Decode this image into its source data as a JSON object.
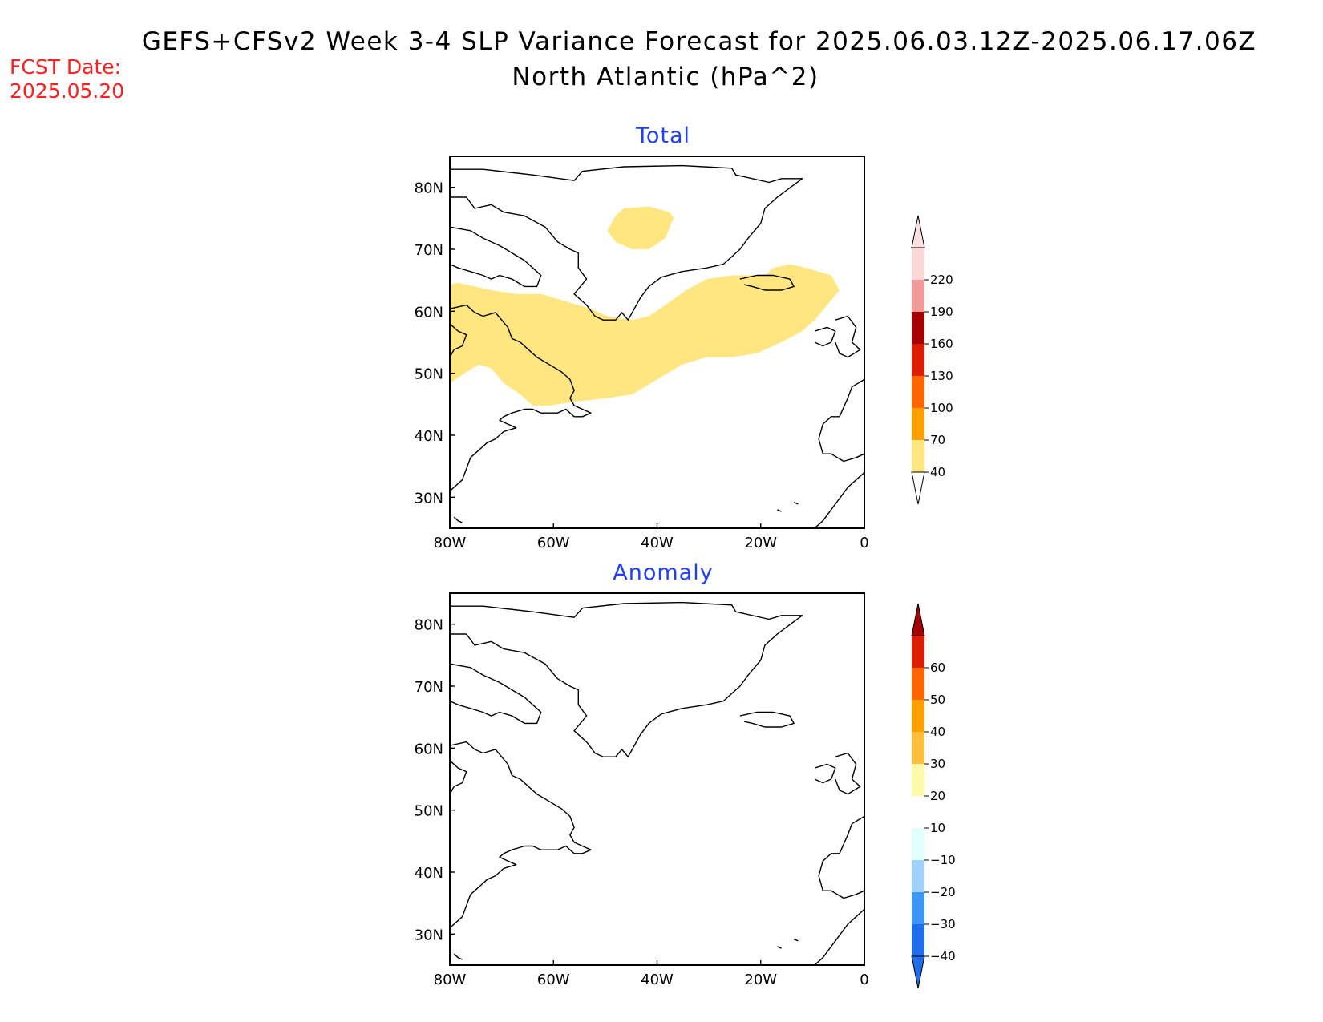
{
  "header": {
    "title_line1": "GEFS+CFSv2 Week 3-4 SLP Variance Forecast for 2025.06.03.12Z-2025.06.17.06Z",
    "title_line2": "North Atlantic (hPa^2)",
    "fcst_label": "FCST Date:",
    "fcst_date": "2025.05.20",
    "title_color": "#000000",
    "fcst_color": "#ff2020"
  },
  "panels": [
    {
      "title": "Total",
      "title_color": "#2040ff",
      "lat_labels": [
        "80N",
        "70N",
        "60N",
        "50N",
        "40N",
        "30N"
      ],
      "lon_labels": [
        "80W",
        "60W",
        "40W",
        "20W",
        "0"
      ],
      "lat_range": [
        25,
        85
      ],
      "lon_range": [
        -80,
        0
      ],
      "shaded_regions": [
        {
          "name": "central-greenland",
          "level": "40-70",
          "color": "#ffe680"
        },
        {
          "name": "north-atlantic-band",
          "level": "40-70",
          "color": "#ffe680"
        }
      ],
      "colorbar": {
        "labels": [
          "220",
          "190",
          "160",
          "130",
          "100",
          "70",
          "40"
        ],
        "colors": [
          "#fbd8d8",
          "#f09a9a",
          "#a50000",
          "#dc1e00",
          "#ff6600",
          "#ff9f00",
          "#ffe680"
        ],
        "extend": "both",
        "low_extension_color": "#ffffff",
        "high_extension_color": "#fde0e0"
      }
    },
    {
      "title": "Anomaly",
      "title_color": "#2040ff",
      "lat_labels": [
        "80N",
        "70N",
        "60N",
        "50N",
        "40N",
        "30N"
      ],
      "lon_labels": [
        "80W",
        "60W",
        "40W",
        "20W",
        "0"
      ],
      "lat_range": [
        25,
        85
      ],
      "lon_range": [
        -80,
        0
      ],
      "shaded_regions": [],
      "colorbar": {
        "labels": [
          "60",
          "50",
          "40",
          "30",
          "20",
          "10",
          "−10",
          "−20",
          "−30",
          "−40"
        ],
        "colors": [
          "#dc1e00",
          "#ff6600",
          "#ff9f00",
          "#ffbe3c",
          "#fffaaa",
          "#ffffff",
          "#e1ffff",
          "#a0d2ff",
          "#3c96f5",
          "#1e6eeb"
        ],
        "extend": "both",
        "low_extension_color": "#1e6eeb",
        "high_extension_color": "#a50000"
      }
    }
  ]
}
